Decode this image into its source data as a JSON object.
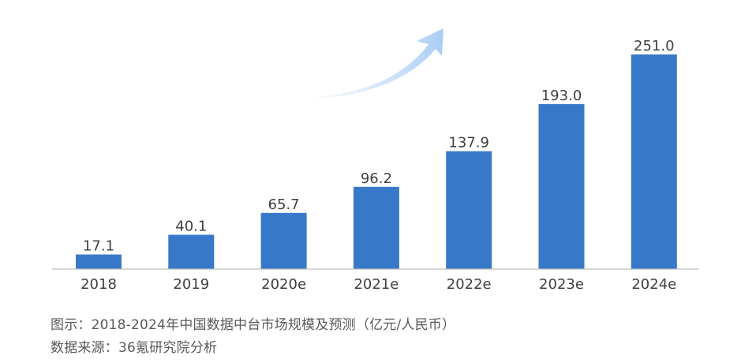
{
  "chart_data": {
    "type": "bar",
    "categories": [
      "2018",
      "2019",
      "2020e",
      "2021e",
      "2022e",
      "2023e",
      "2024e"
    ],
    "values": [
      17.1,
      40.1,
      65.7,
      96.2,
      137.9,
      193.0,
      251.0
    ],
    "value_labels": [
      "17.1",
      "40.1",
      "65.7",
      "96.2",
      "137.9",
      "193.0",
      "251.0"
    ],
    "ylim": [
      0,
      251.0
    ],
    "grid": false,
    "bar_color": "#3878c8",
    "axis_color": "#bfbfbf",
    "label_color": "#404040",
    "arrow_color": "#a9cdf5",
    "annotation": "upward-trend-arrow"
  },
  "captions": {
    "title": "图示：2018-2024年中国数据中台市场规模及预测（亿元/人民币）",
    "source": "数据来源：36氪研究院分析"
  }
}
